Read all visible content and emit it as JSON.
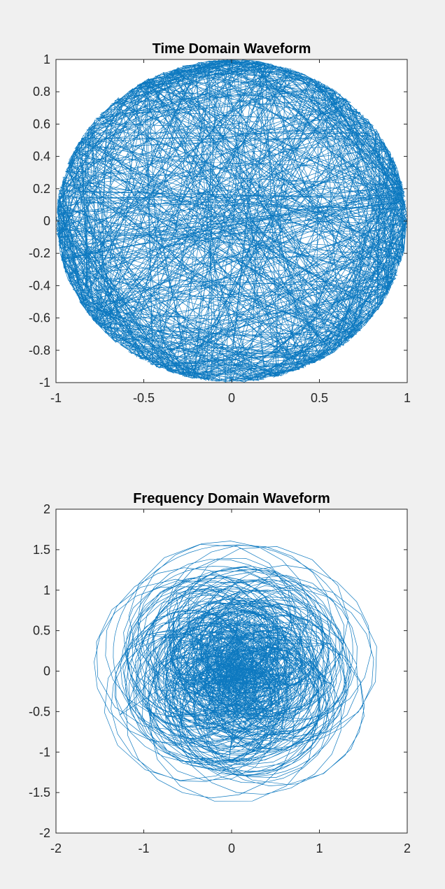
{
  "figure": {
    "background": "#f0f0f0"
  },
  "colors": {
    "series": "#0072bd",
    "axes": "#262626",
    "plot_background": "#ffffff"
  },
  "chart_data": [
    {
      "type": "line",
      "title": "Time Domain Waveform",
      "xlabel": "",
      "ylabel": "",
      "xlim": [
        -1,
        1
      ],
      "ylim": [
        -1,
        1
      ],
      "xticks": [
        "-1",
        "-0.5",
        "0",
        "0.5",
        "1"
      ],
      "yticks": [
        "-1",
        "-0.8",
        "-0.6",
        "-0.4",
        "-0.2",
        "0",
        "0.2",
        "0.4",
        "0.6",
        "0.8",
        "1"
      ],
      "grid": false,
      "legend": "none",
      "series": [
        {
          "shape": "unit-circle chords",
          "radius": 1.0,
          "segment_count": 900,
          "color": "#0072bd"
        }
      ]
    },
    {
      "type": "line",
      "title": "Frequency Domain Waveform",
      "xlabel": "",
      "ylabel": "",
      "xlim": [
        -2,
        2
      ],
      "ylim": [
        -2,
        2
      ],
      "xticks": [
        "-2",
        "-1",
        "0",
        "1",
        "2"
      ],
      "yticks": [
        "-2",
        "-1.5",
        "-1",
        "-0.5",
        "0",
        "0.5",
        "1",
        "1.5",
        "2"
      ],
      "grid": false,
      "legend": "none",
      "series": [
        {
          "shape": "dense looping cloud",
          "max_radius": 1.63,
          "center": [
            0.05,
            0
          ],
          "point_count": 6000,
          "color": "#0072bd"
        }
      ]
    }
  ]
}
